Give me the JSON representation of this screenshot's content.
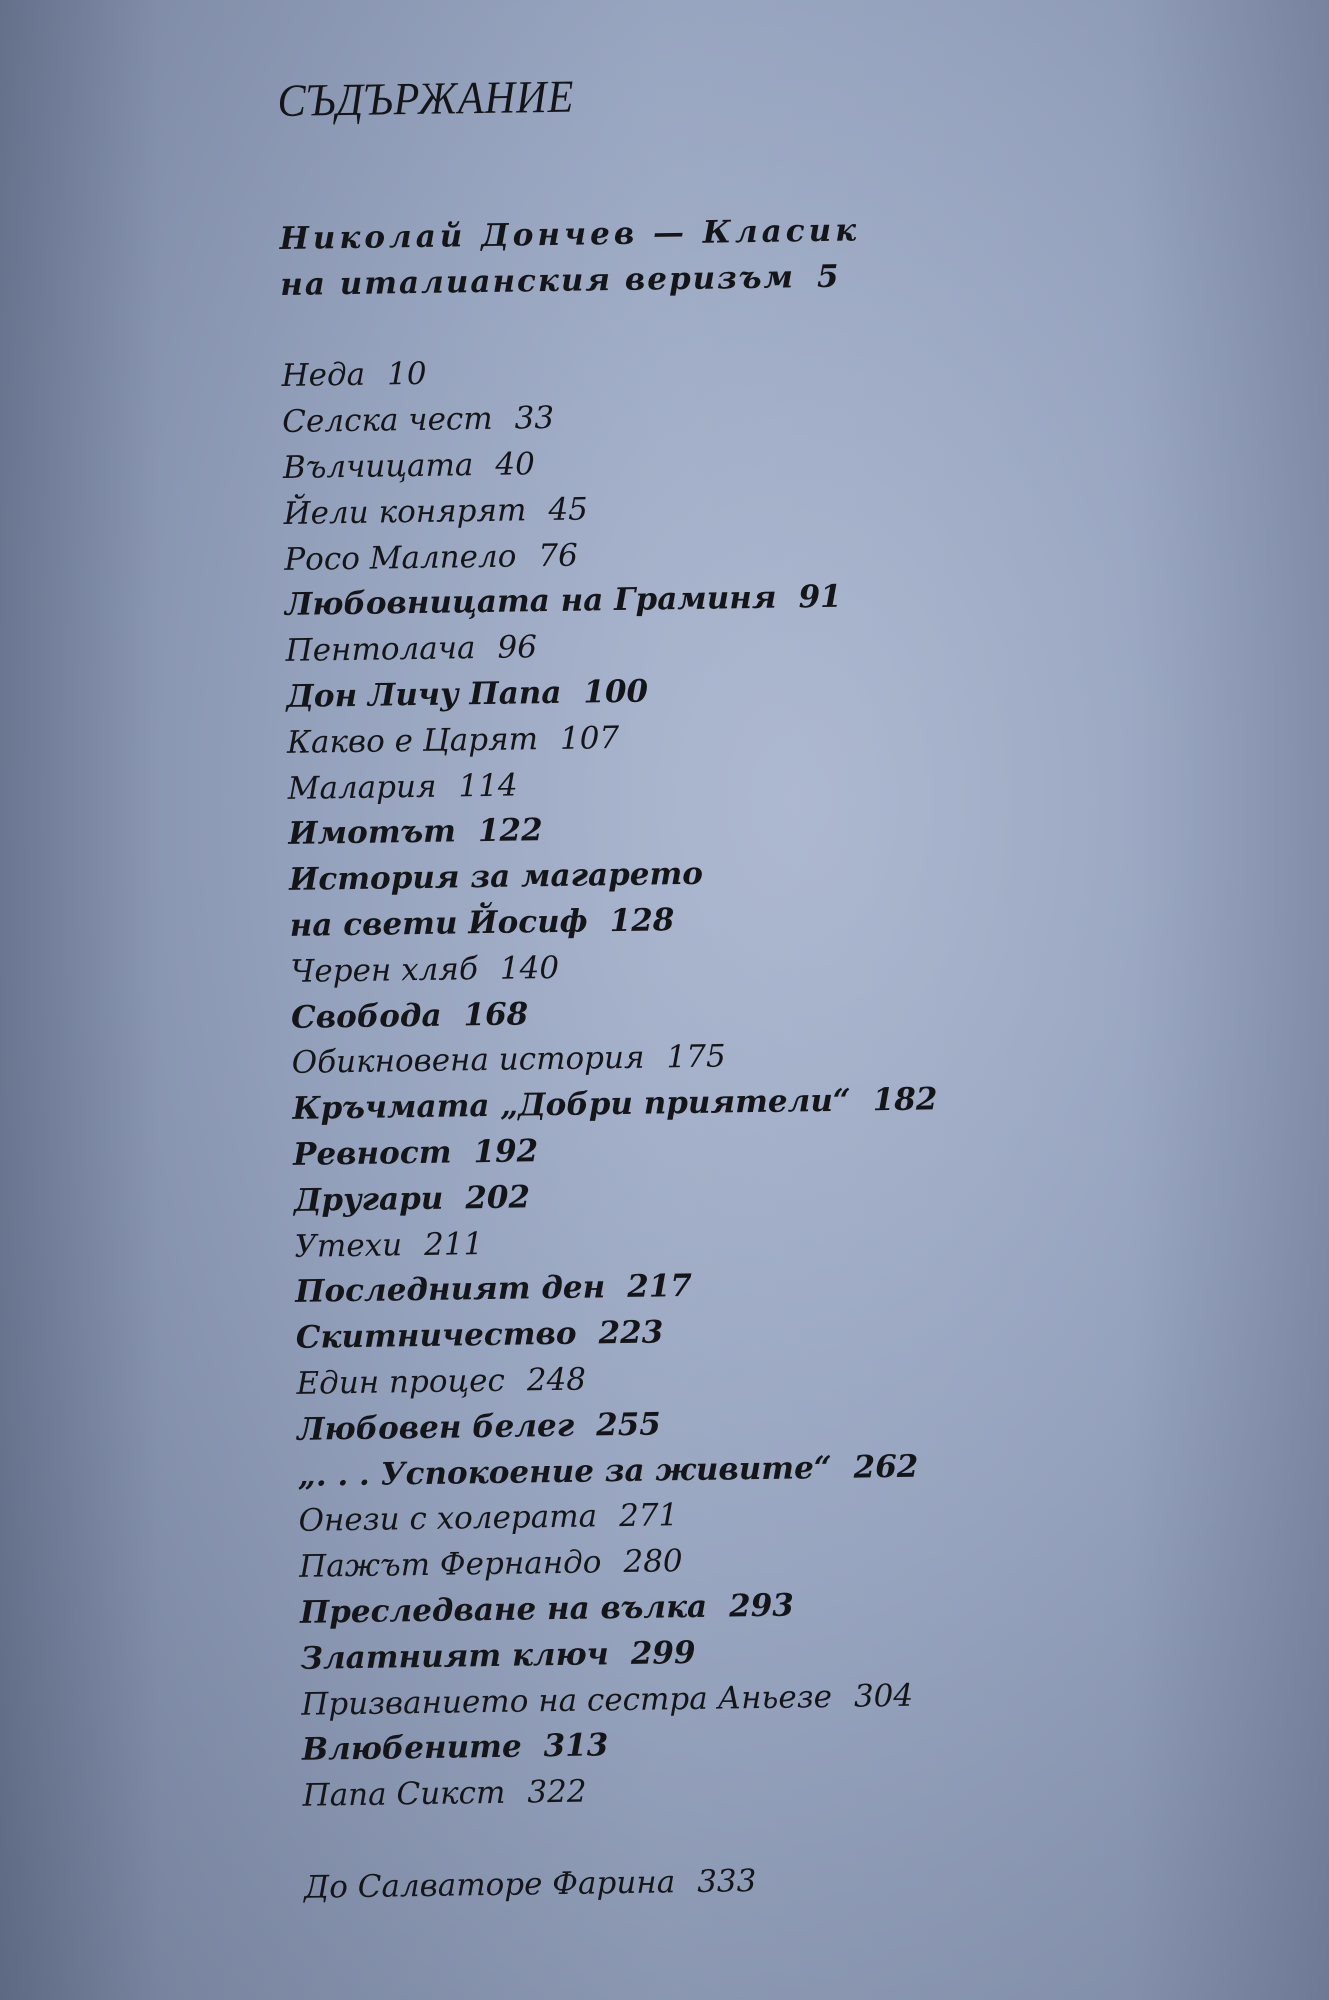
{
  "heading": "СЪДЪРЖАНИЕ",
  "intro": {
    "line1": "Николай Дончев — Класик",
    "line2": "на италианския веризъм",
    "page": "5"
  },
  "entries": [
    {
      "title": "Неда",
      "page": "10"
    },
    {
      "title": "Селска чест",
      "page": "33"
    },
    {
      "title": "Вълчицата",
      "page": "40"
    },
    {
      "title": "Йели конярят",
      "page": "45"
    },
    {
      "title": "Росо Малпело",
      "page": "76"
    },
    {
      "title": "Любовницата на Граминя",
      "page": "91"
    },
    {
      "title": "Пентолача",
      "page": "96"
    },
    {
      "title": "Дон Личу Папа",
      "page": "100"
    },
    {
      "title": "Какво е Царят",
      "page": "107"
    },
    {
      "title": "Малария",
      "page": "114"
    },
    {
      "title": "Имотът",
      "page": "122"
    },
    {
      "title": "История за магарето",
      "title_cont": "на свети Йосиф",
      "page": "128"
    },
    {
      "title": "Черен хляб",
      "page": "140"
    },
    {
      "title": "Свобода",
      "page": "168"
    },
    {
      "title": "Обикновена история",
      "page": "175"
    },
    {
      "title": "Кръчмата „Добри приятели“",
      "page": "182"
    },
    {
      "title": "Ревност",
      "page": "192"
    },
    {
      "title": "Другари",
      "page": "202"
    },
    {
      "title": "Утехи",
      "page": "211"
    },
    {
      "title": "Последният ден",
      "page": "217"
    },
    {
      "title": "Скитничество",
      "page": "223"
    },
    {
      "title": "Един процес",
      "page": "248"
    },
    {
      "title": "Любовен белег",
      "page": "255"
    },
    {
      "title": "„. . . Успокоение за живите“",
      "page": "262"
    },
    {
      "title": "Онези с холерата",
      "page": "271"
    },
    {
      "title": "Пажът Фернандо",
      "page": "280"
    },
    {
      "title": "Преследване на вълка",
      "page": "293"
    },
    {
      "title": "Златният ключ",
      "page": "299"
    },
    {
      "title": "Призванието на сестра Аньезе",
      "page": "304"
    },
    {
      "title": "Влюбените",
      "page": "313"
    },
    {
      "title": "Папа Сикст",
      "page": "322"
    }
  ],
  "final_entry": {
    "title": "До Салваторе Фарина",
    "page": "333"
  }
}
